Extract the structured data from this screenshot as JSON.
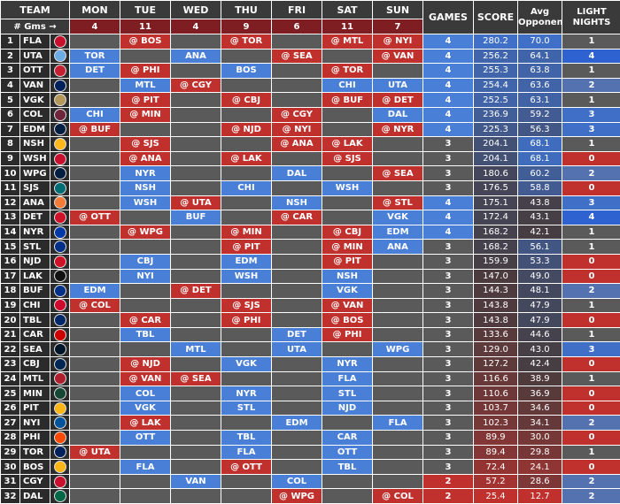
{
  "headers": {
    "team": "TEAM",
    "days": [
      "MON",
      "TUE",
      "WED",
      "THU",
      "FRI",
      "SAT",
      "SUN"
    ],
    "games": "GAMES",
    "score": "SCORE",
    "avg_opponent": "Avg Opponent",
    "light_nights": "LIGHT NIGHTS"
  },
  "games_per_day_label": "# Gms →",
  "games_per_day": [
    "4",
    "11",
    "4",
    "9",
    "6",
    "11",
    "7"
  ],
  "rows": [
    {
      "rank": "1",
      "team": "FLA",
      "days": [
        "",
        "@ BOS",
        "",
        "@ TOR",
        "",
        "@ MTL",
        "@ NYI"
      ],
      "games": "4",
      "score": "280.2",
      "avg": "70.0",
      "light": "1"
    },
    {
      "rank": "2",
      "team": "UTA",
      "days": [
        "TOR",
        "",
        "ANA",
        "",
        "@ SEA",
        "",
        "@ VAN"
      ],
      "games": "4",
      "score": "256.2",
      "avg": "64.1",
      "light": "4"
    },
    {
      "rank": "3",
      "team": "OTT",
      "days": [
        "DET",
        "@ PHI",
        "",
        "BOS",
        "",
        "@ TOR",
        ""
      ],
      "games": "4",
      "score": "255.3",
      "avg": "63.8",
      "light": "1"
    },
    {
      "rank": "4",
      "team": "VAN",
      "days": [
        "",
        "MTL",
        "@ CGY",
        "",
        "",
        "CHI",
        "UTA"
      ],
      "games": "4",
      "score": "254.4",
      "avg": "63.6",
      "light": "2"
    },
    {
      "rank": "5",
      "team": "VGK",
      "days": [
        "",
        "@ PIT",
        "",
        "@ CBJ",
        "",
        "@ BUF",
        "@ DET"
      ],
      "games": "4",
      "score": "252.5",
      "avg": "63.1",
      "light": "1"
    },
    {
      "rank": "6",
      "team": "COL",
      "days": [
        "CHI",
        "@ MIN",
        "",
        "",
        "@ CGY",
        "",
        "DAL"
      ],
      "games": "4",
      "score": "236.9",
      "avg": "59.2",
      "light": "3"
    },
    {
      "rank": "7",
      "team": "EDM",
      "days": [
        "@ BUF",
        "",
        "",
        "@ NJD",
        "@ NYI",
        "",
        "@ NYR"
      ],
      "games": "4",
      "score": "225.3",
      "avg": "56.3",
      "light": "3"
    },
    {
      "rank": "8",
      "team": "NSH",
      "days": [
        "",
        "@ SJS",
        "",
        "",
        "@ ANA",
        "@ LAK",
        ""
      ],
      "games": "3",
      "score": "204.1",
      "avg": "68.1",
      "light": "1"
    },
    {
      "rank": "9",
      "team": "WSH",
      "days": [
        "",
        "@ ANA",
        "",
        "@ LAK",
        "",
        "@ SJS",
        ""
      ],
      "games": "3",
      "score": "204.1",
      "avg": "68.1",
      "light": "0"
    },
    {
      "rank": "10",
      "team": "WPG",
      "days": [
        "",
        "NYR",
        "",
        "",
        "DAL",
        "",
        "@ SEA"
      ],
      "games": "3",
      "score": "180.6",
      "avg": "60.2",
      "light": "2"
    },
    {
      "rank": "11",
      "team": "SJS",
      "days": [
        "",
        "NSH",
        "",
        "CHI",
        "",
        "WSH",
        ""
      ],
      "games": "3",
      "score": "176.5",
      "avg": "58.8",
      "light": "0"
    },
    {
      "rank": "12",
      "team": "ANA",
      "days": [
        "",
        "WSH",
        "@ UTA",
        "",
        "NSH",
        "",
        "@ STL"
      ],
      "games": "4",
      "score": "175.1",
      "avg": "43.8",
      "light": "3"
    },
    {
      "rank": "13",
      "team": "DET",
      "days": [
        "@ OTT",
        "",
        "BUF",
        "",
        "@ CAR",
        "",
        "VGK"
      ],
      "games": "4",
      "score": "172.4",
      "avg": "43.1",
      "light": "4"
    },
    {
      "rank": "14",
      "team": "NYR",
      "days": [
        "",
        "@ WPG",
        "",
        "@ MIN",
        "",
        "@ CBJ",
        "EDM"
      ],
      "games": "4",
      "score": "168.2",
      "avg": "42.1",
      "light": "1"
    },
    {
      "rank": "15",
      "team": "STL",
      "days": [
        "",
        "",
        "",
        "@ PIT",
        "",
        "@ MIN",
        "ANA"
      ],
      "games": "3",
      "score": "168.2",
      "avg": "56.1",
      "light": "1"
    },
    {
      "rank": "16",
      "team": "NJD",
      "days": [
        "",
        "CBJ",
        "",
        "EDM",
        "",
        "@ PIT",
        ""
      ],
      "games": "3",
      "score": "159.9",
      "avg": "53.3",
      "light": "0"
    },
    {
      "rank": "17",
      "team": "LAK",
      "days": [
        "",
        "NYI",
        "",
        "WSH",
        "",
        "NSH",
        ""
      ],
      "games": "3",
      "score": "147.0",
      "avg": "49.0",
      "light": "0"
    },
    {
      "rank": "18",
      "team": "BUF",
      "days": [
        "EDM",
        "",
        "@ DET",
        "",
        "",
        "VGK",
        ""
      ],
      "games": "3",
      "score": "144.3",
      "avg": "48.1",
      "light": "2"
    },
    {
      "rank": "19",
      "team": "CHI",
      "days": [
        "@ COL",
        "",
        "",
        "@ SJS",
        "",
        "@ VAN",
        ""
      ],
      "games": "3",
      "score": "143.8",
      "avg": "47.9",
      "light": "1"
    },
    {
      "rank": "20",
      "team": "TBL",
      "days": [
        "",
        "@ CAR",
        "",
        "@ PHI",
        "",
        "@ BOS",
        ""
      ],
      "games": "3",
      "score": "143.8",
      "avg": "47.9",
      "light": "0"
    },
    {
      "rank": "21",
      "team": "CAR",
      "days": [
        "",
        "TBL",
        "",
        "",
        "DET",
        "@ PHI",
        ""
      ],
      "games": "3",
      "score": "133.6",
      "avg": "44.6",
      "light": "1"
    },
    {
      "rank": "22",
      "team": "SEA",
      "days": [
        "",
        "",
        "MTL",
        "",
        "UTA",
        "",
        "WPG"
      ],
      "games": "3",
      "score": "129.0",
      "avg": "43.0",
      "light": "3"
    },
    {
      "rank": "23",
      "team": "CBJ",
      "days": [
        "",
        "@ NJD",
        "",
        "VGK",
        "",
        "NYR",
        ""
      ],
      "games": "3",
      "score": "127.2",
      "avg": "42.4",
      "light": "0"
    },
    {
      "rank": "24",
      "team": "MTL",
      "days": [
        "",
        "@ VAN",
        "@ SEA",
        "",
        "",
        "FLA",
        ""
      ],
      "games": "3",
      "score": "116.6",
      "avg": "38.9",
      "light": "1"
    },
    {
      "rank": "25",
      "team": "MIN",
      "days": [
        "",
        "COL",
        "",
        "NYR",
        "",
        "STL",
        ""
      ],
      "games": "3",
      "score": "110.6",
      "avg": "36.9",
      "light": "0"
    },
    {
      "rank": "26",
      "team": "PIT",
      "days": [
        "",
        "VGK",
        "",
        "STL",
        "",
        "NJD",
        ""
      ],
      "games": "3",
      "score": "103.7",
      "avg": "34.6",
      "light": "0"
    },
    {
      "rank": "27",
      "team": "NYI",
      "days": [
        "",
        "@ LAK",
        "",
        "",
        "EDM",
        "",
        "FLA"
      ],
      "games": "3",
      "score": "102.3",
      "avg": "34.1",
      "light": "2"
    },
    {
      "rank": "28",
      "team": "PHI",
      "days": [
        "",
        "OTT",
        "",
        "TBL",
        "",
        "CAR",
        ""
      ],
      "games": "3",
      "score": "89.9",
      "avg": "30.0",
      "light": "0"
    },
    {
      "rank": "29",
      "team": "TOR",
      "days": [
        "@ UTA",
        "",
        "",
        "FLA",
        "",
        "OTT",
        ""
      ],
      "games": "3",
      "score": "89.4",
      "avg": "29.8",
      "light": "1"
    },
    {
      "rank": "30",
      "team": "BOS",
      "days": [
        "",
        "FLA",
        "",
        "@ OTT",
        "",
        "TBL",
        ""
      ],
      "games": "3",
      "score": "72.4",
      "avg": "24.1",
      "light": "0"
    },
    {
      "rank": "31",
      "team": "CGY",
      "days": [
        "",
        "",
        "VAN",
        "",
        "COL",
        "",
        ""
      ],
      "games": "2",
      "score": "57.2",
      "avg": "28.6",
      "light": "2"
    },
    {
      "rank": "32",
      "team": "DAL",
      "days": [
        "",
        "",
        "",
        "",
        "@ WPG",
        "",
        "@ COL"
      ],
      "games": "2",
      "score": "25.4",
      "avg": "12.7",
      "light": "2"
    }
  ],
  "team_colors": {
    "FLA": "#c8102e",
    "UTA": "#6cace4",
    "OTT": "#c52032",
    "VAN": "#00205b",
    "VGK": "#b4975a",
    "COL": "#6f263d",
    "EDM": "#041e42",
    "NSH": "#ffb81c",
    "WSH": "#c8102e",
    "WPG": "#041e42",
    "SJS": "#006d75",
    "ANA": "#f47a38",
    "DET": "#ce1126",
    "NYR": "#0038a8",
    "STL": "#002f87",
    "NJD": "#ce1126",
    "LAK": "#111111",
    "BUF": "#003087",
    "CHI": "#cf0a2c",
    "TBL": "#002868",
    "CAR": "#cc0000",
    "SEA": "#001628",
    "CBJ": "#002654",
    "MTL": "#af1e2d",
    "MIN": "#154734",
    "PIT": "#fcb514",
    "NYI": "#00539b",
    "PHI": "#f74902",
    "TOR": "#00205b",
    "BOS": "#fcb514",
    "CGY": "#c8102e",
    "DAL": "#006847"
  }
}
